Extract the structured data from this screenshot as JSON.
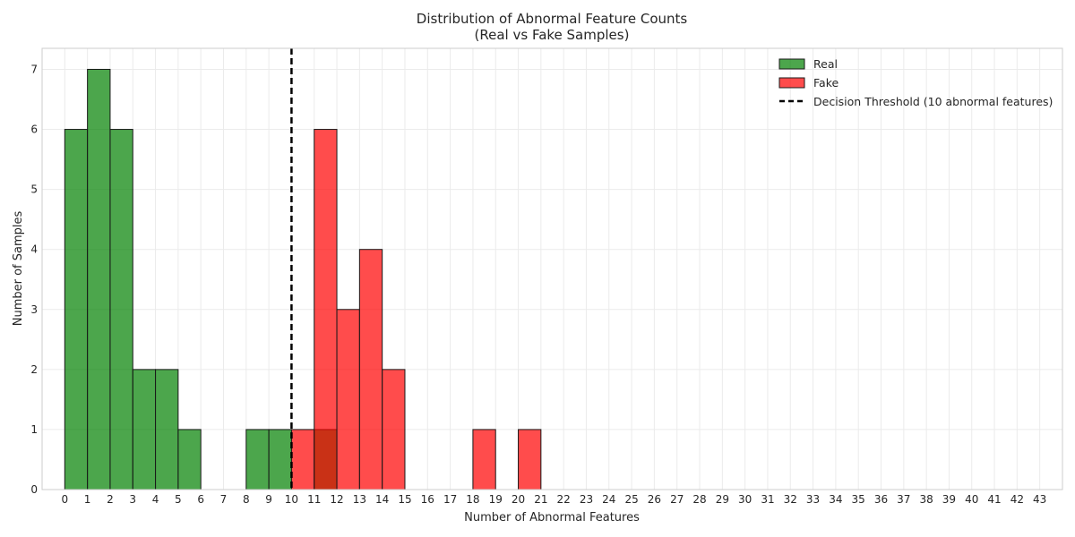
{
  "chart_data": {
    "type": "bar",
    "title": "Distribution of Abnormal Feature Counts",
    "subtitle": "(Real vs Fake Samples)",
    "xlabel": "Number of Abnormal Features",
    "ylabel": "Number of Samples",
    "xlim": [
      -1,
      44
    ],
    "ylim": [
      0,
      7.35
    ],
    "x_ticks": [
      0,
      1,
      2,
      3,
      4,
      5,
      6,
      7,
      8,
      9,
      10,
      11,
      12,
      13,
      14,
      15,
      16,
      17,
      18,
      19,
      20,
      21,
      22,
      23,
      24,
      25,
      26,
      27,
      28,
      29,
      30,
      31,
      32,
      33,
      34,
      35,
      36,
      37,
      38,
      39,
      40,
      41,
      42,
      43
    ],
    "y_ticks": [
      0,
      1,
      2,
      3,
      4,
      5,
      6,
      7
    ],
    "grid": true,
    "legend_position": "top-right",
    "series": [
      {
        "name": "Real",
        "color": "#008000",
        "bins": [
          {
            "from": 0,
            "to": 1,
            "count": 6
          },
          {
            "from": 1,
            "to": 2,
            "count": 7
          },
          {
            "from": 2,
            "to": 3,
            "count": 6
          },
          {
            "from": 3,
            "to": 4,
            "count": 2
          },
          {
            "from": 4,
            "to": 5,
            "count": 2
          },
          {
            "from": 5,
            "to": 6,
            "count": 1
          },
          {
            "from": 8,
            "to": 9,
            "count": 1
          },
          {
            "from": 9,
            "to": 10,
            "count": 1
          },
          {
            "from": 11,
            "to": 12,
            "count": 1
          }
        ]
      },
      {
        "name": "Fake",
        "color": "#ff0000",
        "bins": [
          {
            "from": 10,
            "to": 11,
            "count": 1
          },
          {
            "from": 11,
            "to": 12,
            "count": 6
          },
          {
            "from": 12,
            "to": 13,
            "count": 3
          },
          {
            "from": 13,
            "to": 14,
            "count": 4
          },
          {
            "from": 14,
            "to": 15,
            "count": 2
          },
          {
            "from": 18,
            "to": 19,
            "count": 1
          },
          {
            "from": 20,
            "to": 21,
            "count": 1
          }
        ]
      }
    ],
    "threshold": {
      "name": "Decision Threshold (10 abnormal features)",
      "x": 10,
      "style": "dashed",
      "color": "#000000"
    }
  }
}
